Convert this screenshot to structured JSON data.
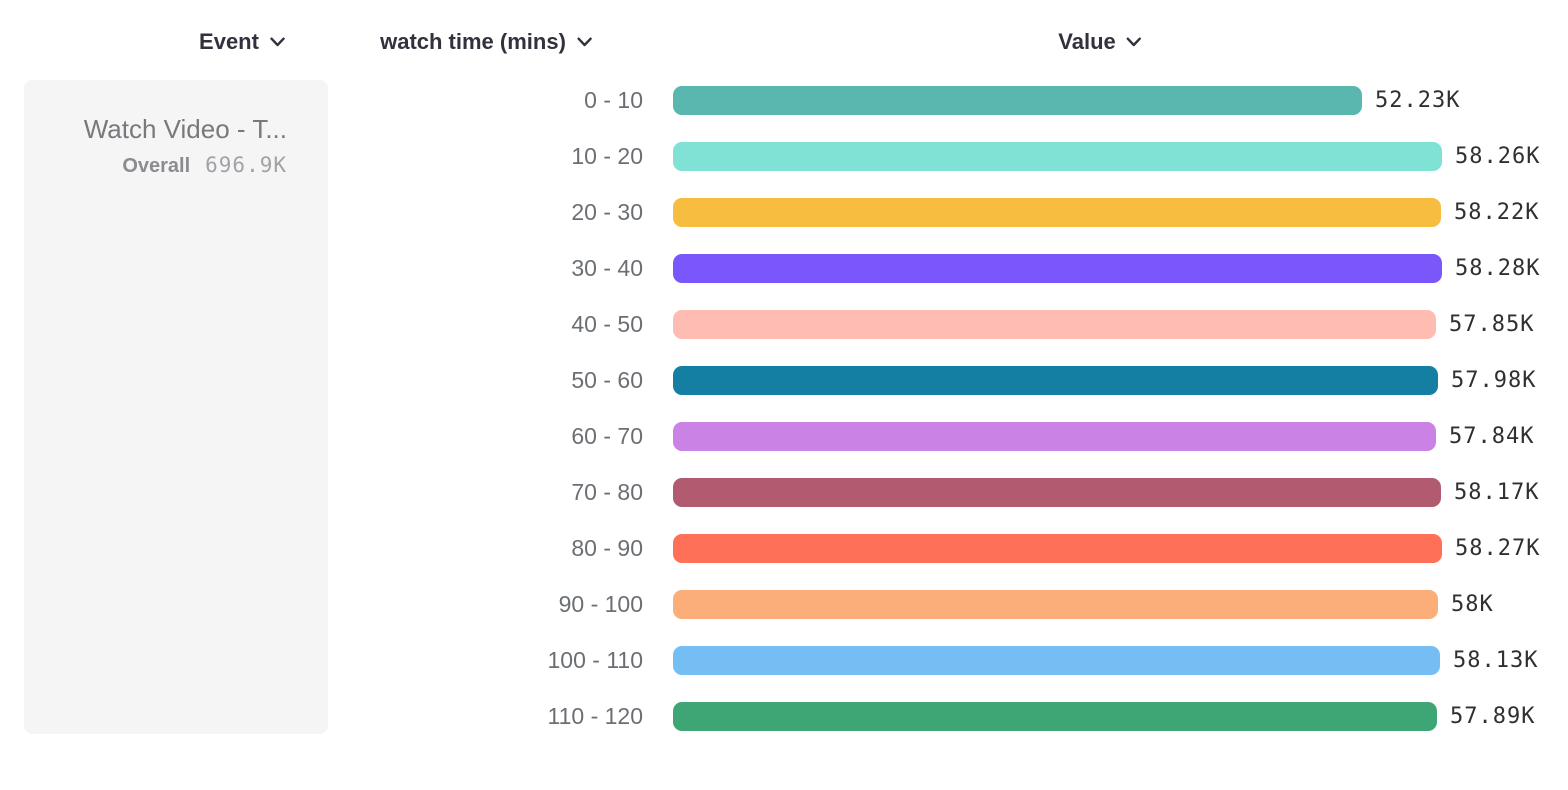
{
  "header": {
    "columns": [
      {
        "id": "event",
        "label": "Event"
      },
      {
        "id": "bucket",
        "label": "watch time (mins)"
      },
      {
        "id": "value",
        "label": "Value"
      }
    ],
    "chevron_icon": "chevron-down"
  },
  "event_card": {
    "title": "Watch Video - T...",
    "overall_label": "Overall",
    "overall_value": "696.9K"
  },
  "chart_data": {
    "type": "bar",
    "orientation": "horizontal",
    "title": "",
    "xlabel": "watch time (mins)",
    "ylabel": "Value",
    "grid": false,
    "legend_position": "left",
    "categories": [
      "0 - 10",
      "10 - 20",
      "20 - 30",
      "30 - 40",
      "40 - 50",
      "50 - 60",
      "60 - 70",
      "70 - 80",
      "80 - 90",
      "90 - 100",
      "100 - 110",
      "110 - 120"
    ],
    "values": [
      52230,
      58260,
      58220,
      58280,
      57850,
      57980,
      57840,
      58170,
      58270,
      58000,
      58130,
      57890
    ],
    "value_labels": [
      "52.23K",
      "58.26K",
      "58.22K",
      "58.28K",
      "57.85K",
      "57.98K",
      "57.84K",
      "58.17K",
      "58.27K",
      "58K",
      "58.13K",
      "57.89K"
    ],
    "bar_colors": [
      "#59b7af",
      "#80e2d4",
      "#f7bd40",
      "#7957fb",
      "#ffbcb2",
      "#147ea3",
      "#ca83e4",
      "#b25a6f",
      "#ff7058",
      "#fcae7a",
      "#75bef4",
      "#3ea574"
    ],
    "max_value": 58280,
    "overall_total": 696900
  },
  "colors": {
    "header_text": "#32323e",
    "category_label": "#6b6f73",
    "value_label": "#2f3032",
    "card_background": "#f5f5f6",
    "card_title": "#77797c",
    "card_overall_label": "#8a8c8f",
    "card_overall_value": "#a0a2a5"
  }
}
